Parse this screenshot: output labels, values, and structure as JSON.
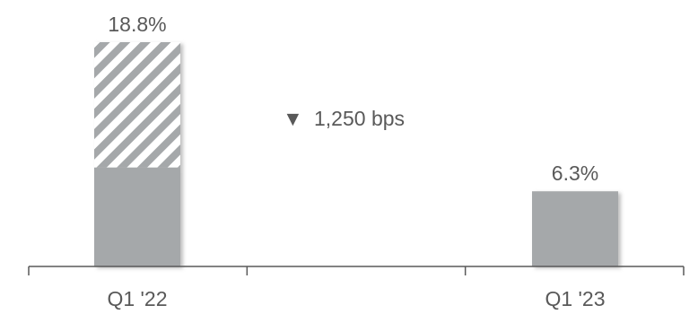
{
  "chart_data": {
    "type": "bar",
    "title": "",
    "xlabel": "",
    "ylabel": "",
    "categories": [
      "Q1 '22",
      "Q1 '23"
    ],
    "values": [
      18.8,
      6.3
    ],
    "value_labels": [
      "18.8%",
      "6.3%"
    ],
    "bar_segments": [
      {
        "solid": 8.3,
        "hatched": 10.5
      },
      {
        "solid": 6.3,
        "hatched": 0
      }
    ],
    "ylim": [
      0,
      20
    ],
    "grid": false,
    "legend": "none",
    "annotation": {
      "symbol": "▼",
      "text": "1,250 bps"
    },
    "colors": {
      "bar": "#a5a8aa",
      "hatch": "#a5a8aa",
      "text": "#595959",
      "axis": "#595959"
    }
  }
}
